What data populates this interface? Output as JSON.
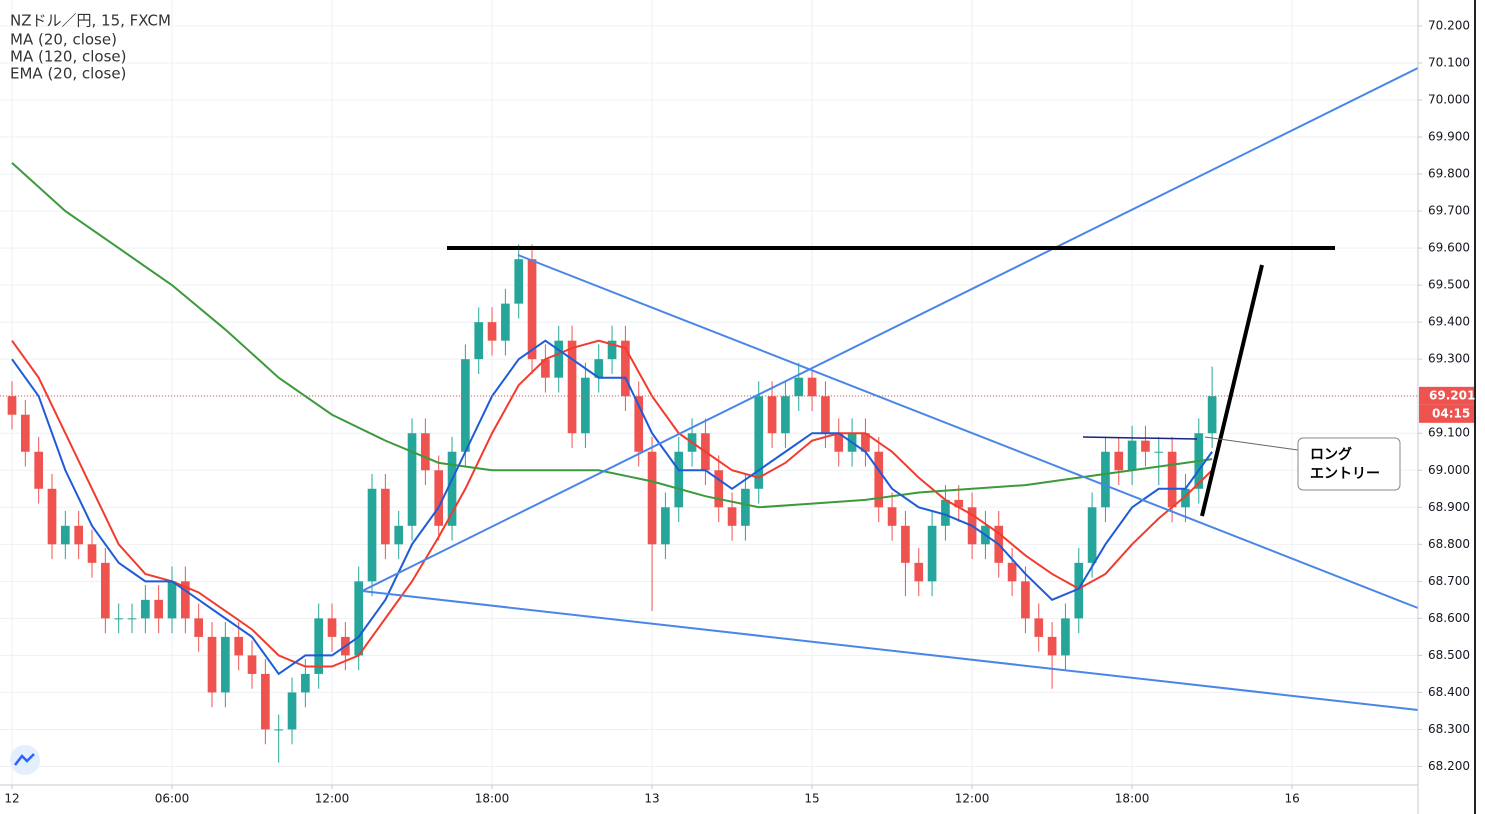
{
  "chart_data": {
    "type": "candlestick",
    "title": "NZドル／円, 15, FXCM",
    "x": [
      0,
      0.5,
      1,
      1.5,
      2,
      2.5,
      3,
      3.5,
      4,
      4.5,
      5,
      5.5,
      6,
      6.5,
      7,
      7.5,
      8,
      8.5,
      9,
      9.5,
      10,
      10.5,
      11,
      11.5,
      12,
      12.5,
      13,
      13.5,
      14,
      14.5,
      15,
      15.5,
      16,
      16.5,
      17,
      17.5,
      18,
      18.5,
      19,
      19.5,
      20,
      20.5,
      21,
      21.5,
      22,
      22.5,
      23,
      23.5,
      24,
      24.5,
      25,
      25.5,
      26,
      26.5,
      27,
      27.5,
      28,
      28.5,
      29,
      29.5,
      30,
      30.5,
      31,
      31.5,
      32,
      32.5,
      33,
      33.5,
      34,
      34.5,
      35,
      35.5,
      36,
      36.5,
      37,
      37.5,
      38,
      38.5,
      39,
      39.5,
      40,
      40.5,
      41,
      41.5,
      42,
      42.5,
      43,
      43.5,
      44,
      44.5,
      45
    ],
    "open": [
      69.2,
      69.15,
      69.05,
      68.95,
      68.8,
      68.85,
      68.8,
      68.75,
      68.6,
      68.6,
      68.6,
      68.65,
      68.6,
      68.7,
      68.6,
      68.55,
      68.4,
      68.55,
      68.5,
      68.45,
      68.3,
      68.3,
      68.4,
      68.45,
      68.6,
      68.55,
      68.5,
      68.7,
      68.95,
      68.8,
      68.85,
      69.1,
      69.0,
      68.85,
      69.05,
      69.3,
      69.4,
      69.35,
      69.45,
      69.57,
      69.3,
      69.25,
      69.35,
      69.1,
      69.25,
      69.3,
      69.35,
      69.2,
      69.05,
      68.8,
      68.9,
      69.05,
      69.1,
      69.0,
      68.9,
      68.85,
      68.95,
      69.2,
      69.1,
      69.2,
      69.25,
      69.2,
      69.1,
      69.05,
      69.1,
      69.05,
      68.9,
      68.85,
      68.75,
      68.7,
      68.85,
      68.92,
      68.9,
      68.8,
      68.85,
      68.75,
      68.7,
      68.6,
      68.55,
      68.5,
      68.6,
      68.75,
      68.9,
      69.05,
      69.0,
      69.08,
      69.05,
      69.05,
      68.9,
      68.95,
      69.1
    ],
    "high": [
      69.24,
      69.19,
      69.09,
      68.99,
      68.89,
      68.89,
      68.84,
      68.79,
      68.64,
      68.64,
      68.69,
      68.69,
      68.74,
      68.74,
      68.64,
      68.59,
      68.59,
      68.59,
      68.54,
      68.49,
      68.34,
      68.44,
      68.49,
      68.64,
      68.64,
      68.59,
      68.74,
      68.99,
      68.99,
      68.89,
      69.14,
      69.14,
      69.04,
      69.09,
      69.34,
      69.44,
      69.44,
      69.49,
      69.61,
      69.61,
      69.34,
      69.39,
      69.39,
      69.29,
      69.34,
      69.39,
      69.39,
      69.24,
      69.09,
      68.94,
      69.09,
      69.14,
      69.14,
      69.04,
      68.94,
      68.99,
      69.24,
      69.24,
      69.24,
      69.29,
      69.27,
      69.24,
      69.14,
      69.14,
      69.14,
      69.09,
      68.94,
      68.89,
      68.79,
      68.89,
      68.96,
      68.96,
      68.94,
      68.89,
      68.89,
      68.79,
      68.74,
      68.64,
      68.59,
      68.64,
      68.79,
      68.94,
      69.09,
      69.09,
      69.12,
      69.12,
      69.09,
      69.09,
      68.99,
      69.14,
      69.28
    ],
    "low": [
      69.11,
      69.01,
      68.91,
      68.76,
      68.76,
      68.76,
      68.71,
      68.56,
      68.56,
      68.56,
      68.56,
      68.56,
      68.56,
      68.56,
      68.51,
      68.36,
      68.36,
      68.46,
      68.41,
      68.26,
      68.21,
      68.26,
      68.36,
      68.41,
      68.51,
      68.46,
      68.46,
      68.66,
      68.76,
      68.76,
      68.81,
      68.96,
      68.81,
      68.81,
      69.01,
      69.26,
      69.31,
      69.31,
      69.41,
      69.26,
      69.21,
      69.21,
      69.06,
      69.06,
      69.21,
      69.26,
      69.16,
      69.01,
      68.62,
      68.76,
      68.86,
      69.01,
      68.96,
      68.86,
      68.81,
      68.81,
      68.91,
      69.06,
      69.06,
      69.16,
      69.16,
      69.06,
      69.01,
      69.01,
      69.01,
      68.86,
      68.81,
      68.66,
      68.66,
      68.66,
      68.81,
      68.86,
      68.76,
      68.76,
      68.71,
      68.66,
      68.56,
      68.51,
      68.41,
      68.46,
      68.56,
      68.71,
      68.86,
      68.96,
      68.96,
      69.01,
      68.96,
      68.86,
      68.86,
      68.91,
      69.06
    ],
    "close": [
      69.15,
      69.05,
      68.95,
      68.8,
      68.85,
      68.8,
      68.75,
      68.6,
      68.6,
      68.6,
      68.65,
      68.6,
      68.7,
      68.6,
      68.55,
      68.4,
      68.55,
      68.5,
      68.45,
      68.3,
      68.3,
      68.4,
      68.45,
      68.6,
      68.55,
      68.5,
      68.7,
      68.95,
      68.8,
      68.85,
      69.1,
      69.0,
      68.85,
      69.05,
      69.3,
      69.4,
      69.35,
      69.45,
      69.57,
      69.3,
      69.25,
      69.35,
      69.1,
      69.25,
      69.3,
      69.35,
      69.2,
      69.05,
      68.8,
      68.9,
      69.05,
      69.1,
      69.0,
      68.9,
      68.85,
      68.95,
      69.2,
      69.1,
      69.2,
      69.25,
      69.2,
      69.1,
      69.05,
      69.1,
      69.05,
      68.9,
      68.85,
      68.75,
      68.7,
      68.85,
      68.92,
      68.9,
      68.8,
      68.85,
      68.75,
      68.7,
      68.6,
      68.55,
      68.5,
      68.6,
      68.75,
      68.9,
      69.05,
      69.0,
      69.08,
      69.05,
      69.05,
      68.9,
      68.95,
      69.1,
      69.2
    ],
    "up_color": "#26a69a",
    "down_color": "#ef5350",
    "series": [
      {
        "name": "MA (20, close)",
        "color": "#f23b2f",
        "x": [
          0,
          1,
          2,
          3,
          4,
          5,
          6,
          7,
          8,
          9,
          10,
          11,
          12,
          13,
          14,
          15,
          16,
          17,
          18,
          19,
          20,
          21,
          22,
          23,
          24,
          25,
          26,
          27,
          28,
          29,
          30,
          31,
          32,
          33,
          34,
          35,
          36,
          37,
          38,
          39,
          40,
          41,
          42,
          43,
          44,
          45
        ],
        "values": [
          69.35,
          69.25,
          69.1,
          68.95,
          68.8,
          68.72,
          68.7,
          68.67,
          68.62,
          68.57,
          68.5,
          68.47,
          68.47,
          68.5,
          68.6,
          68.7,
          68.82,
          68.95,
          69.1,
          69.23,
          69.3,
          69.33,
          69.35,
          69.33,
          69.2,
          69.1,
          69.05,
          69.0,
          68.98,
          69.02,
          69.08,
          69.1,
          69.1,
          69.05,
          68.98,
          68.92,
          68.88,
          68.83,
          68.77,
          68.72,
          68.68,
          68.72,
          68.8,
          68.87,
          68.93,
          69.0
        ]
      },
      {
        "name": "MA (120, close)",
        "color": "#3c9a3c",
        "x": [
          0,
          2,
          4,
          6,
          8,
          10,
          12,
          14,
          16,
          18,
          20,
          22,
          24,
          26,
          28,
          30,
          32,
          34,
          36,
          38,
          40,
          42,
          44,
          45
        ],
        "values": [
          69.83,
          69.7,
          69.6,
          69.5,
          69.38,
          69.25,
          69.15,
          69.08,
          69.02,
          69.0,
          69.0,
          69.0,
          68.97,
          68.93,
          68.9,
          68.91,
          68.92,
          68.94,
          68.95,
          68.96,
          68.98,
          69.0,
          69.02,
          69.03
        ]
      },
      {
        "name": "EMA (20, close)",
        "color": "#1e5bd6",
        "x": [
          0,
          1,
          2,
          3,
          4,
          5,
          6,
          7,
          8,
          9,
          10,
          11,
          12,
          13,
          14,
          15,
          16,
          17,
          18,
          19,
          20,
          21,
          22,
          23,
          24,
          25,
          26,
          27,
          28,
          29,
          30,
          31,
          32,
          33,
          34,
          35,
          36,
          37,
          38,
          39,
          40,
          41,
          42,
          43,
          44,
          45
        ],
        "values": [
          69.3,
          69.2,
          69.0,
          68.85,
          68.75,
          68.7,
          68.7,
          68.65,
          68.6,
          68.55,
          68.45,
          68.5,
          68.5,
          68.55,
          68.65,
          68.8,
          68.9,
          69.05,
          69.2,
          69.3,
          69.35,
          69.3,
          69.25,
          69.25,
          69.1,
          69.0,
          69.0,
          68.95,
          69.0,
          69.05,
          69.1,
          69.1,
          69.05,
          68.95,
          68.9,
          68.88,
          68.85,
          68.8,
          68.72,
          68.65,
          68.68,
          68.8,
          68.9,
          68.95,
          68.95,
          69.05
        ]
      }
    ],
    "xlim": [
      -0.45,
      52.72
    ],
    "ylim": [
      68.15,
      70.27
    ],
    "xticks": [
      {
        "value": 0,
        "label": "12"
      },
      {
        "value": 6,
        "label": "06:00"
      },
      {
        "value": 12,
        "label": "12:00"
      },
      {
        "value": 18,
        "label": "18:00"
      },
      {
        "value": 24,
        "label": "13"
      },
      {
        "value": 30,
        "label": "15"
      },
      {
        "value": 36,
        "label": "12:00"
      },
      {
        "value": 42,
        "label": "18:00"
      },
      {
        "value": 48,
        "label": "16"
      }
    ],
    "yticks": [
      {
        "value": 68.2,
        "label": "68.200"
      },
      {
        "value": 68.3,
        "label": "68.300"
      },
      {
        "value": 68.4,
        "label": "68.400"
      },
      {
        "value": 68.5,
        "label": "68.500"
      },
      {
        "value": 68.6,
        "label": "68.600"
      },
      {
        "value": 68.7,
        "label": "68.700"
      },
      {
        "value": 68.8,
        "label": "68.800"
      },
      {
        "value": 68.9,
        "label": "68.900"
      },
      {
        "value": 69.0,
        "label": "69.000"
      },
      {
        "value": 69.1,
        "label": "69.100"
      },
      {
        "value": 69.2,
        "label": "69.200"
      },
      {
        "value": 69.3,
        "label": "69.300"
      },
      {
        "value": 69.4,
        "label": "69.400"
      },
      {
        "value": 69.5,
        "label": "69.500"
      },
      {
        "value": 69.6,
        "label": "69.600"
      },
      {
        "value": 69.7,
        "label": "69.700"
      },
      {
        "value": 69.8,
        "label": "69.800"
      },
      {
        "value": 69.9,
        "label": "69.900"
      },
      {
        "value": 70.0,
        "label": "70.000"
      },
      {
        "value": 70.1,
        "label": "70.100"
      },
      {
        "value": 70.2,
        "label": "70.200"
      }
    ],
    "grid": true,
    "last_price": {
      "value": 69.201,
      "label": "69.201"
    },
    "countdown": "04:15",
    "annotation": [
      "ロング",
      "エントリー"
    ]
  }
}
